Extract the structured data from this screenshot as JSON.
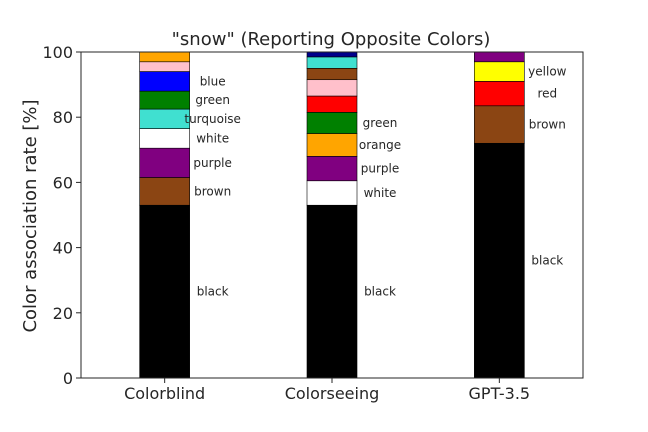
{
  "chart_data": {
    "type": "bar",
    "stacked": true,
    "title": "\"snow\" (Reporting Opposite Colors)",
    "xlabel": "",
    "ylabel": "Color association rate [%]",
    "ylim": [
      0,
      100
    ],
    "yticks": [
      0,
      20,
      40,
      60,
      80,
      100
    ],
    "grid": false,
    "legend": "none",
    "categories": [
      "Colorblind",
      "Colorseeing",
      "GPT-3.5"
    ],
    "colors": {
      "black": "#000000",
      "brown": "#8B4513",
      "purple": "#800080",
      "white": "#FFFFFF",
      "turquoise": "#40E0D0",
      "green": "#008000",
      "blue": "#0000FF",
      "pink": "#FFC0CB",
      "orange": "#FFA500",
      "red": "#FF0000",
      "navy": "#00008B",
      "yellow": "#FFFF00"
    },
    "bars": [
      {
        "category": "Colorblind",
        "segments": [
          {
            "color": "black",
            "value": 53,
            "label": "black"
          },
          {
            "color": "brown",
            "value": 8.5,
            "label": "brown"
          },
          {
            "color": "purple",
            "value": 9,
            "label": "purple"
          },
          {
            "color": "white",
            "value": 6,
            "label": "white"
          },
          {
            "color": "turquoise",
            "value": 6,
            "label": "turquoise"
          },
          {
            "color": "green",
            "value": 5.5,
            "label": "green"
          },
          {
            "color": "blue",
            "value": 6,
            "label": "blue"
          },
          {
            "color": "pink",
            "value": 3,
            "label": ""
          },
          {
            "color": "orange",
            "value": 3,
            "label": ""
          }
        ]
      },
      {
        "category": "Colorseeing",
        "segments": [
          {
            "color": "black",
            "value": 53,
            "label": "black"
          },
          {
            "color": "white",
            "value": 7.5,
            "label": "white"
          },
          {
            "color": "purple",
            "value": 7.5,
            "label": "purple"
          },
          {
            "color": "orange",
            "value": 7,
            "label": "orange"
          },
          {
            "color": "green",
            "value": 6.5,
            "label": "green"
          },
          {
            "color": "red",
            "value": 5,
            "label": ""
          },
          {
            "color": "pink",
            "value": 5,
            "label": ""
          },
          {
            "color": "brown",
            "value": 3.5,
            "label": ""
          },
          {
            "color": "turquoise",
            "value": 3.5,
            "label": ""
          },
          {
            "color": "navy",
            "value": 1.5,
            "label": ""
          }
        ]
      },
      {
        "category": "GPT-3.5",
        "segments": [
          {
            "color": "black",
            "value": 72,
            "label": "black"
          },
          {
            "color": "brown",
            "value": 11.5,
            "label": "brown"
          },
          {
            "color": "red",
            "value": 7.5,
            "label": "red"
          },
          {
            "color": "yellow",
            "value": 6,
            "label": "yellow"
          },
          {
            "color": "purple",
            "value": 3,
            "label": ""
          }
        ]
      }
    ]
  }
}
